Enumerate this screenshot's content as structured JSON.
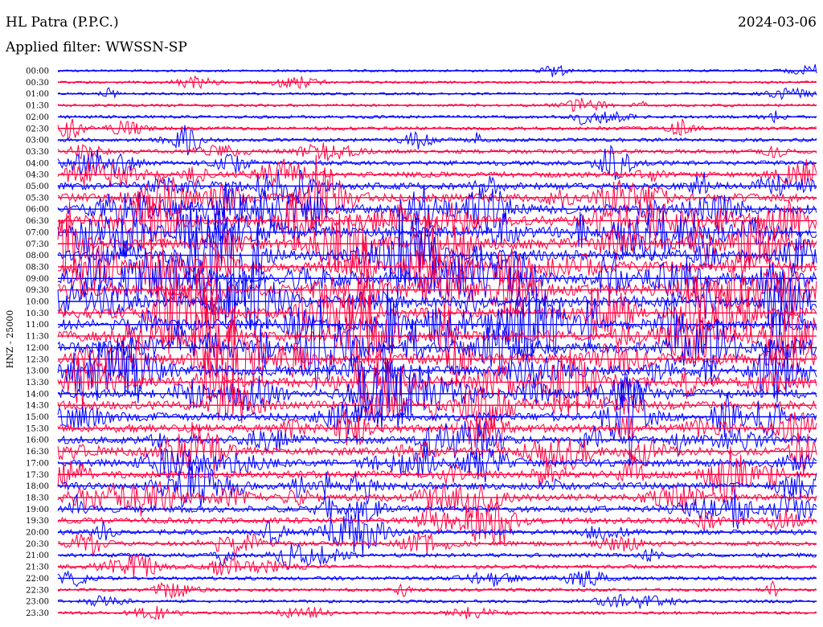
{
  "header": {
    "station": "HL Patra (P.P.C.)",
    "date": "2024-03-06",
    "filter": "Applied filter: WWSSN-SP"
  },
  "chart_data": {
    "type": "line",
    "title": "HL Patra (P.P.C.)",
    "subtitle": "Applied filter: WWSSN-SP",
    "ylabel": "HNZ - 25000",
    "xlabel": "",
    "row_labels": [
      "00:00",
      "00:30",
      "01:00",
      "01:30",
      "02:00",
      "02:30",
      "03:00",
      "03:30",
      "04:00",
      "04:30",
      "05:00",
      "05:30",
      "06:00",
      "06:30",
      "07:00",
      "07:30",
      "08:00",
      "08:30",
      "09:00",
      "09:30",
      "10:00",
      "10:30",
      "11:00",
      "11:30",
      "12:00",
      "12:30",
      "13:00",
      "13:30",
      "14:00",
      "14:30",
      "15:00",
      "15:30",
      "16:00",
      "16:30",
      "17:00",
      "17:30",
      "18:00",
      "18:30",
      "19:00",
      "19:30",
      "20:00",
      "20:30",
      "21:00",
      "21:30",
      "22:00",
      "22:30",
      "23:00",
      "23:30"
    ],
    "row_colors": [
      "#0000ff",
      "#ff0040"
    ],
    "activity_level": [
      0.05,
      0.06,
      0.05,
      0.08,
      0.12,
      0.18,
      0.2,
      0.25,
      0.3,
      0.4,
      0.55,
      0.7,
      0.85,
      0.95,
      1.0,
      1.0,
      1.0,
      1.0,
      1.0,
      1.0,
      1.0,
      1.0,
      1.0,
      1.0,
      1.0,
      1.0,
      0.95,
      0.9,
      0.8,
      0.75,
      0.7,
      0.7,
      0.65,
      0.65,
      0.6,
      0.6,
      0.6,
      0.55,
      0.5,
      0.45,
      0.35,
      0.3,
      0.25,
      0.2,
      0.18,
      0.15,
      0.12,
      0.12
    ],
    "grid": false
  }
}
